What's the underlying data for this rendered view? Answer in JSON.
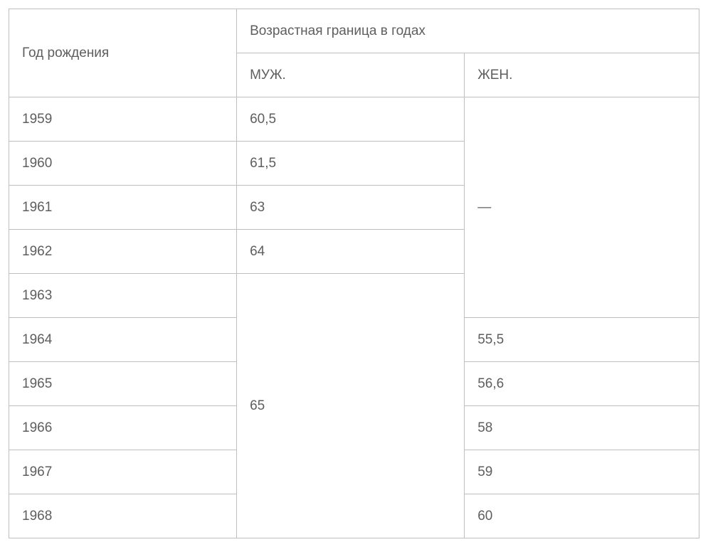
{
  "table": {
    "type": "table",
    "background_color": "#ffffff",
    "border_color": "#bfbfbf",
    "text_color": "#5e5e5e",
    "font_size": 19,
    "headers": {
      "year": "Год рождения",
      "age_boundary": "Возрастная граница в годах",
      "male": "МУЖ.",
      "female": "ЖЕН."
    },
    "em_dash": "—",
    "columns": [
      "year",
      "male",
      "female"
    ],
    "years": [
      "1959",
      "1960",
      "1961",
      "1962",
      "1963",
      "1964",
      "1965",
      "1966",
      "1967",
      "1968"
    ],
    "male_values": {
      "row0": "60,5",
      "row1": "61,5",
      "row2": "63",
      "row3": "64",
      "merged_5_to_9": "65"
    },
    "female_values": {
      "merged_0_to_4": "—",
      "row5": "55,5",
      "row6": "56,6",
      "row7": "58",
      "row8": "59",
      "row9": "60"
    }
  }
}
